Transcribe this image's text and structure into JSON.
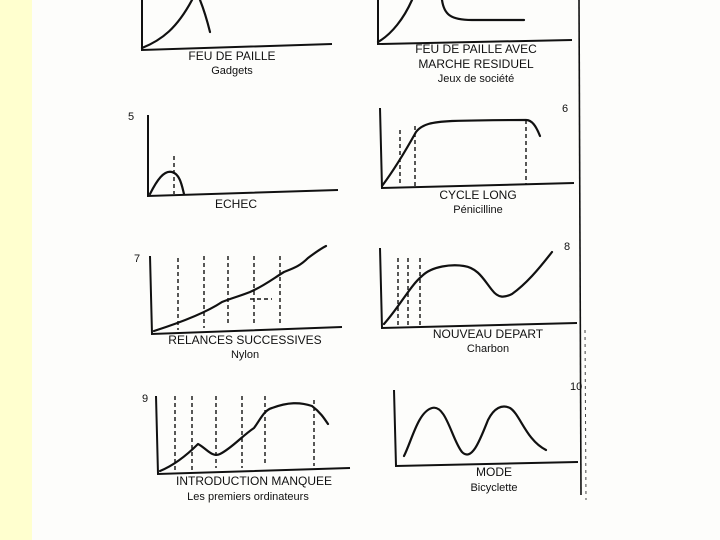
{
  "panels": [
    {
      "number": "",
      "title": "FEU DE PAILLE",
      "title2": "",
      "subtitle": "Gadgets"
    },
    {
      "number": "",
      "title": "FEU DE PAILLE AVEC",
      "title2": "MARCHE RESIDUEL",
      "subtitle": "Jeux de société"
    },
    {
      "number": "5",
      "title": "ECHEC",
      "title2": "",
      "subtitle": ""
    },
    {
      "number": "6",
      "title": "CYCLE LONG",
      "title2": "",
      "subtitle": "Pénicilline"
    },
    {
      "number": "7",
      "title": "RELANCES SUCCESSIVES",
      "title2": "",
      "subtitle": "Nylon"
    },
    {
      "number": "8",
      "title": "NOUVEAU DEPART",
      "title2": "",
      "subtitle": "Charbon"
    },
    {
      "number": "9",
      "title": "INTRODUCTION MANQUEE",
      "title2": "",
      "subtitle": "Les premiers ordinateurs"
    },
    {
      "number": "10",
      "title": "MODE",
      "title2": "",
      "subtitle": "Bicyclette"
    }
  ],
  "colors": {
    "page_background": "#ffffd6",
    "sheet": "#fdfdfb",
    "ink": "#111111"
  }
}
